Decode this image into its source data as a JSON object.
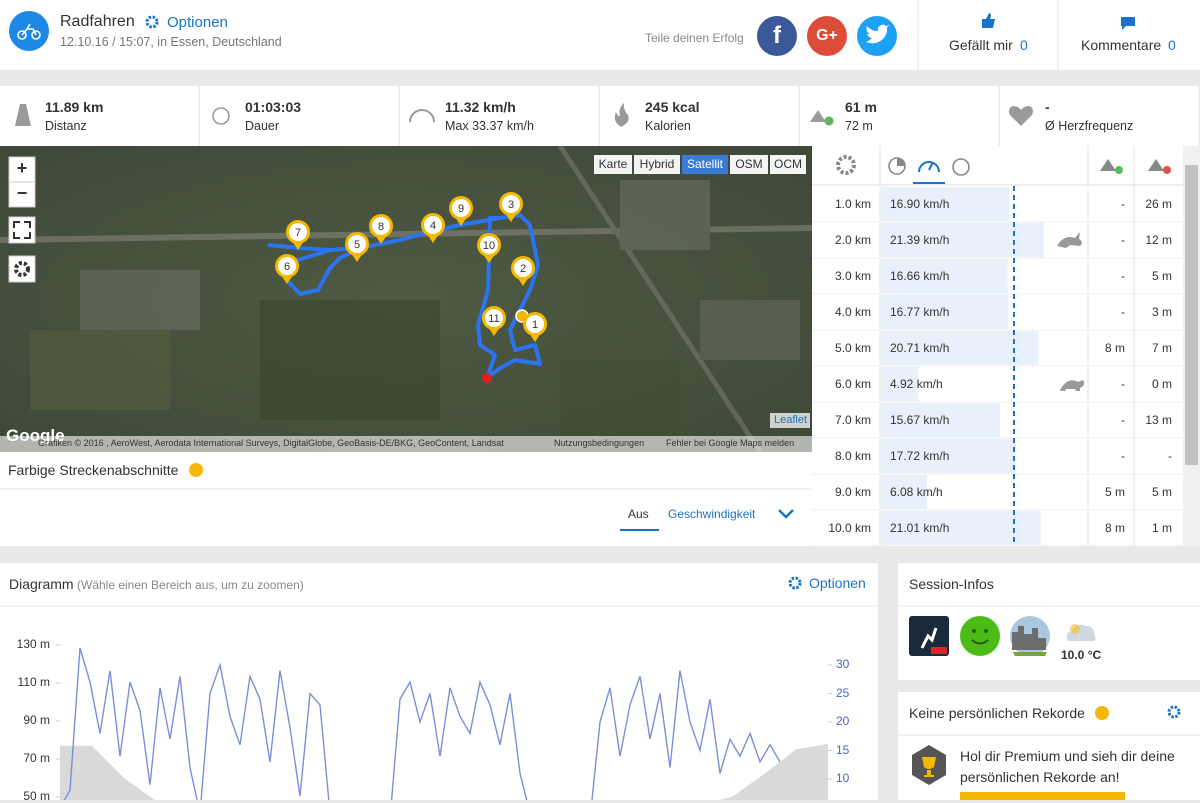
{
  "header": {
    "title": "Radfahren",
    "options": "Optionen",
    "date": "12.10.16 / 15:07, in Essen, Deutschland",
    "share": "Teile deinen Erfolg",
    "share_buttons": [
      "f",
      "G+"
    ],
    "like": "Gefällt mir",
    "like_count": "0",
    "comments": "Kommentare",
    "comment_count": "0"
  },
  "stats": [
    {
      "value": "11.89 km",
      "label": "Distanz"
    },
    {
      "value": "01:03:03",
      "label": "Dauer"
    },
    {
      "value": "11.32 km/h",
      "label": "Max 33.37 km/h"
    },
    {
      "value": "245 kcal",
      "label": "Kalorien"
    },
    {
      "value": "61 m",
      "label": "72 m"
    },
    {
      "value": "-",
      "label": "Ø Herzfrequenz"
    }
  ],
  "map": {
    "controls": [
      "+",
      "−"
    ],
    "layers": [
      "Karte",
      "Hybrid",
      "Satellit",
      "OSM",
      "OCM"
    ],
    "active_layer": "Satellit",
    "markers": [
      "1",
      "2",
      "3",
      "4",
      "5",
      "6",
      "7",
      "8",
      "9",
      "10",
      "11"
    ],
    "google": "Google",
    "attribution": "Grafiken © 2016 , AeroWest, Aerodata International Surveys, DigitalGlobe, GeoBasis-DE/BKG, GeoContent, Landsat",
    "terms": "Nutzungsbedingungen",
    "report": "Fehler bei Google Maps melden",
    "leaflet": "Leaflet"
  },
  "segments": {
    "title": "Farbige Streckenabschnitte",
    "off": "Aus",
    "speed": "Geschwindigkeit"
  },
  "splits": {
    "rows": [
      {
        "km": "1.0 km",
        "speed": 16.9,
        "speed_label": "16.90 km/h",
        "up": "-",
        "down": "26 m"
      },
      {
        "km": "2.0 km",
        "speed": 21.39,
        "speed_label": "21.39 km/h",
        "up": "-",
        "down": "12 m"
      },
      {
        "km": "3.0 km",
        "speed": 16.66,
        "speed_label": "16.66 km/h",
        "up": "-",
        "down": "5 m"
      },
      {
        "km": "4.0 km",
        "speed": 16.77,
        "speed_label": "16.77 km/h",
        "up": "-",
        "down": "3 m"
      },
      {
        "km": "5.0 km",
        "speed": 20.71,
        "speed_label": "20.71 km/h",
        "up": "8 m",
        "down": "7 m"
      },
      {
        "km": "6.0 km",
        "speed": 4.92,
        "speed_label": "4.92 km/h",
        "up": "-",
        "down": "0 m"
      },
      {
        "km": "7.0 km",
        "speed": 15.67,
        "speed_label": "15.67 km/h",
        "up": "-",
        "down": "13 m"
      },
      {
        "km": "8.0 km",
        "speed": 17.72,
        "speed_label": "17.72 km/h",
        "up": "-",
        "down": "-"
      },
      {
        "km": "9.0 km",
        "speed": 6.08,
        "speed_label": "6.08 km/h",
        "up": "5 m",
        "down": "5 m"
      },
      {
        "km": "10.0 km",
        "speed": 21.01,
        "speed_label": "21.01 km/h",
        "up": "8 m",
        "down": "1 m"
      }
    ]
  },
  "diagram": {
    "title": "Diagramm",
    "hint": "(Wähle einen Bereich aus, um zu zoomen)",
    "options": "Optionen",
    "ylim": [
      50,
      130
    ],
    "yticks": [
      {
        "value": 130,
        "label": "130 m"
      },
      {
        "value": 110,
        "label": "110 m"
      },
      {
        "value": 90,
        "label": "90 m"
      },
      {
        "value": 70,
        "label": "70 m"
      },
      {
        "value": 50,
        "label": "50 m"
      }
    ],
    "y2lim": [
      10,
      30
    ],
    "y2ticks": [
      30,
      25,
      20,
      15,
      10
    ],
    "elevation": {
      "color": "#d9d9d9",
      "values": [
        77,
        77,
        60,
        48,
        45,
        42,
        40,
        38,
        36,
        35,
        35,
        34,
        34,
        35,
        36,
        37,
        38,
        40,
        42,
        44,
        46,
        50,
        62,
        75,
        78
      ]
    },
    "speed": {
      "color": "#7b8fd6",
      "axis": "y2",
      "values": [
        5,
        8,
        33,
        27,
        18,
        29,
        14,
        27,
        22,
        9,
        26,
        17,
        28,
        12,
        4,
        25,
        30,
        21,
        16,
        28,
        24,
        13,
        29,
        19,
        7,
        25,
        23,
        4,
        3,
        2,
        3,
        2,
        2,
        3,
        24,
        27,
        20,
        25,
        14,
        26,
        21,
        18,
        27,
        23,
        16,
        25,
        11,
        4,
        3,
        2,
        3,
        3,
        2,
        3,
        20,
        26,
        14,
        23,
        28,
        17,
        25,
        12,
        29,
        20,
        15,
        24,
        11,
        17,
        14,
        18,
        13,
        16,
        13
      ]
    }
  },
  "session": {
    "title": "Session-Infos",
    "temperature": "10.0 °C"
  },
  "records": {
    "title": "Keine persönlichen Rekorde",
    "text": "Hol dir Premium und sieh dir deine persönlichen Rekorde an!"
  }
}
